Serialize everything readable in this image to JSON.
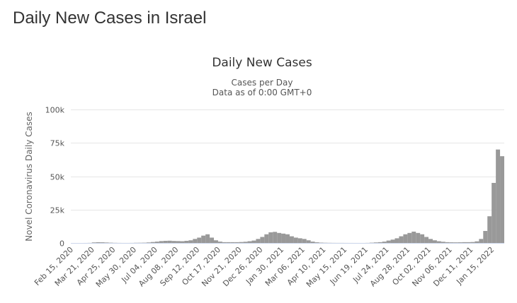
{
  "page": {
    "title": "Daily New Cases in Israel"
  },
  "chart_data": {
    "type": "bar",
    "title": "Daily New Cases",
    "subtitle": "Cases per Day",
    "caption": "Data as of 0:00 GMT+0",
    "xlabel": "",
    "ylabel": "Novel Coronavirus Daily Cases",
    "ylim": [
      0,
      100000
    ],
    "y_ticks": [
      "0",
      "25k",
      "50k",
      "75k",
      "100k"
    ],
    "x_ticks": [
      "Feb 15, 2020",
      "Mar 21, 2020",
      "Apr 25, 2020",
      "May 30, 2020",
      "Jul 04, 2020",
      "Aug 08, 2020",
      "Sep 12, 2020",
      "Oct 17, 2020",
      "Nov 21, 2020",
      "Dec 26, 2020",
      "Jan 30, 2021",
      "Mar 06, 2021",
      "Apr 10, 2021",
      "May 15, 2021",
      "Jun 19, 2021",
      "Jul 24, 2021",
      "Aug 28, 2021",
      "Oct 02, 2021",
      "Nov 06, 2021",
      "Dec 11, 2021",
      "Jan 15, 2022"
    ],
    "grid": true,
    "bar_color": "#999999",
    "x_start": "Feb 15, 2020",
    "x_interval": "weekly",
    "values": [
      0,
      0,
      2,
      10,
      60,
      400,
      550,
      500,
      350,
      200,
      100,
      50,
      20,
      20,
      40,
      120,
      150,
      200,
      400,
      700,
      1000,
      1400,
      1600,
      1700,
      1500,
      1400,
      1300,
      1600,
      2000,
      3000,
      4000,
      5500,
      6500,
      4000,
      2000,
      1000,
      600,
      600,
      600,
      600,
      700,
      900,
      1300,
      1800,
      3000,
      4500,
      6500,
      8000,
      8300,
      7500,
      7000,
      6500,
      5000,
      4000,
      3500,
      3000,
      2000,
      1000,
      500,
      250,
      150,
      100,
      60,
      50,
      40,
      30,
      20,
      15,
      10,
      15,
      60,
      200,
      400,
      600,
      1000,
      1800,
      2500,
      3500,
      5000,
      6500,
      7500,
      8500,
      7500,
      6500,
      4500,
      3000,
      2000,
      1300,
      900,
      600,
      500,
      450,
      500,
      600,
      600,
      700,
      1200,
      3000,
      9000,
      20000,
      45000,
      70000,
      65000
    ]
  }
}
